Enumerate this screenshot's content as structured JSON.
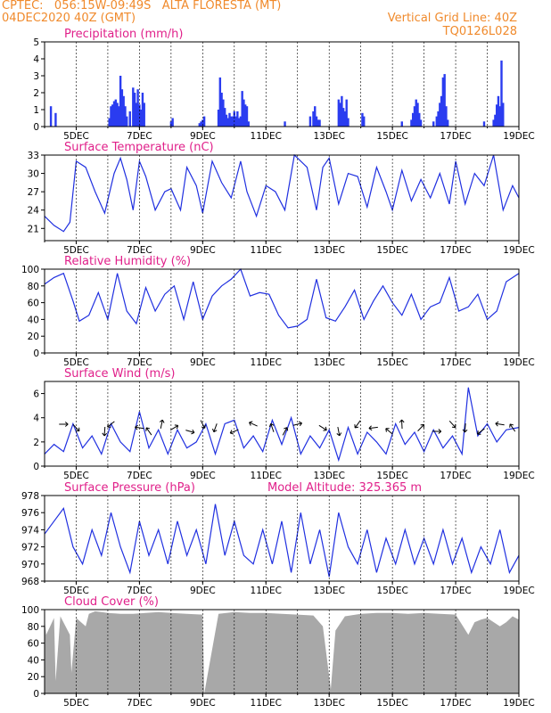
{
  "header": {
    "line1_left": "CPTEC:   056:15W-09:49S   ALTA FLORESTA (MT)",
    "line2_left": "04DEC2020 40Z (GMT)",
    "line1_right": "Vertical Grid Line: 40Z",
    "line2_right": "TQ0126L028"
  },
  "model_altitude": "Model Altitude: 325.365 m",
  "colors": {
    "line": "#2030e0",
    "bar": "#2a3cf0",
    "cloud": "#a8a8a8",
    "title": "#e0208a",
    "header": "#f08a2c",
    "arrow": "#000000"
  },
  "x_ticks": [
    "5DEC",
    "7DEC",
    "9DEC",
    "11DEC",
    "13DEC",
    "15DEC",
    "17DEC",
    "19DEC"
  ],
  "chart_data": [
    {
      "type": "bar",
      "title": "Precipitation (mm/h)",
      "ylim": [
        0,
        5
      ],
      "yticks": [
        "0",
        "1",
        "2",
        "3",
        "4",
        "5"
      ],
      "x": [
        4.2,
        4.35,
        6.05,
        6.1,
        6.15,
        6.2,
        6.25,
        6.3,
        6.35,
        6.4,
        6.45,
        6.5,
        6.55,
        6.6,
        6.7,
        6.8,
        6.85,
        6.9,
        6.95,
        7.0,
        7.05,
        7.1,
        7.15,
        8.0,
        8.05,
        8.9,
        8.95,
        9.0,
        9.05,
        9.5,
        9.55,
        9.6,
        9.65,
        9.7,
        9.75,
        9.8,
        9.85,
        9.9,
        9.95,
        10.0,
        10.05,
        10.1,
        10.15,
        10.2,
        10.25,
        10.3,
        10.35,
        10.4,
        10.45,
        11.6,
        12.4,
        12.5,
        12.55,
        12.6,
        12.65,
        12.7,
        13.3,
        13.35,
        13.4,
        13.45,
        13.5,
        13.55,
        13.6,
        14.05,
        14.1,
        15.3,
        15.6,
        15.65,
        15.7,
        15.75,
        15.8,
        15.85,
        15.9,
        16.3,
        16.4,
        16.45,
        16.5,
        16.55,
        16.6,
        16.65,
        16.7,
        16.75,
        17.9,
        18.2,
        18.25,
        18.3,
        18.35,
        18.4,
        18.45,
        18.5
      ],
      "values": [
        1.2,
        0.8,
        0.5,
        1.2,
        1.3,
        1.5,
        1.6,
        1.4,
        1.2,
        3.0,
        2.2,
        1.8,
        1.2,
        0.6,
        0.9,
        2.3,
        2.0,
        1.4,
        2.2,
        1.3,
        1.0,
        2.0,
        1.4,
        0.3,
        0.5,
        0.2,
        0.3,
        0.4,
        0.6,
        1.0,
        2.9,
        2.0,
        1.6,
        1.1,
        0.7,
        0.5,
        0.8,
        0.6,
        0.6,
        0.9,
        0.6,
        0.9,
        0.5,
        0.6,
        2.1,
        1.6,
        1.3,
        1.2,
        0.3,
        0.3,
        0.6,
        0.9,
        1.2,
        0.6,
        0.4,
        0.4,
        1.6,
        1.4,
        1.8,
        1.1,
        0.9,
        1.6,
        0.5,
        0.8,
        0.6,
        0.3,
        0.4,
        0.8,
        1.2,
        1.6,
        1.4,
        0.8,
        0.4,
        0.3,
        0.6,
        0.9,
        1.4,
        1.8,
        2.9,
        3.1,
        1.2,
        0.4,
        0.3,
        0.4,
        0.7,
        1.3,
        1.8,
        1.2,
        3.9,
        1.4
      ]
    },
    {
      "type": "line",
      "title": "Surface Temperature (nC)",
      "ylim": [
        19,
        33
      ],
      "yticks": [
        "21",
        "24",
        "27",
        "30",
        "33"
      ],
      "x": [
        4,
        4.3,
        4.6,
        4.8,
        5.0,
        5.3,
        5.6,
        5.9,
        6.2,
        6.4,
        6.6,
        6.8,
        7.0,
        7.2,
        7.5,
        7.8,
        8.0,
        8.3,
        8.5,
        8.8,
        9.0,
        9.3,
        9.6,
        9.9,
        10.2,
        10.4,
        10.7,
        11.0,
        11.3,
        11.6,
        11.9,
        12.3,
        12.6,
        12.8,
        13.0,
        13.3,
        13.6,
        13.9,
        14.2,
        14.5,
        14.8,
        15.0,
        15.3,
        15.6,
        15.9,
        16.2,
        16.5,
        16.8,
        17.0,
        17.3,
        17.6,
        17.9,
        18.2,
        18.5,
        18.8,
        19.0
      ],
      "values": [
        23,
        21.5,
        20.5,
        22,
        32,
        31,
        27,
        23.5,
        30,
        32.5,
        29,
        24,
        32,
        29.5,
        24,
        27,
        27.5,
        24,
        31,
        28,
        23.5,
        32,
        28.5,
        26,
        32,
        27,
        23,
        28,
        27,
        24,
        33,
        31,
        24,
        31,
        32.5,
        25,
        30,
        29.5,
        24.5,
        31,
        27,
        24,
        30.5,
        25.5,
        29,
        26,
        30,
        25,
        32,
        25,
        30,
        28,
        33,
        24,
        28,
        26
      ]
    },
    {
      "type": "line",
      "title": "Relative Humidity (%)",
      "ylim": [
        0,
        100
      ],
      "yticks": [
        "0",
        "20",
        "40",
        "60",
        "80",
        "100"
      ],
      "x": [
        4,
        4.3,
        4.6,
        4.9,
        5.1,
        5.4,
        5.7,
        6.0,
        6.3,
        6.6,
        6.9,
        7.2,
        7.5,
        7.8,
        8.1,
        8.4,
        8.7,
        9.0,
        9.3,
        9.6,
        9.9,
        10.2,
        10.5,
        10.8,
        11.1,
        11.4,
        11.7,
        12.0,
        12.3,
        12.6,
        12.9,
        13.2,
        13.5,
        13.8,
        14.1,
        14.4,
        14.7,
        15.0,
        15.3,
        15.6,
        15.9,
        16.2,
        16.5,
        16.8,
        17.1,
        17.4,
        17.7,
        18.0,
        18.3,
        18.6,
        19.0
      ],
      "values": [
        82,
        90,
        95,
        62,
        38,
        45,
        72,
        40,
        95,
        50,
        35,
        78,
        50,
        70,
        80,
        40,
        85,
        40,
        68,
        80,
        88,
        100,
        68,
        72,
        70,
        45,
        30,
        32,
        40,
        88,
        42,
        38,
        55,
        75,
        40,
        62,
        80,
        60,
        45,
        70,
        40,
        55,
        60,
        90,
        50,
        55,
        70,
        40,
        50,
        85,
        95
      ]
    },
    {
      "type": "line",
      "title": "Surface Wind (m/s)",
      "ylim": [
        0,
        7
      ],
      "yticks": [
        "0",
        "2",
        "4",
        "6"
      ],
      "x": [
        4,
        4.3,
        4.6,
        4.9,
        5.2,
        5.5,
        5.8,
        6.1,
        6.4,
        6.7,
        7.0,
        7.3,
        7.6,
        7.9,
        8.2,
        8.5,
        8.8,
        9.1,
        9.4,
        9.7,
        10.0,
        10.3,
        10.6,
        10.9,
        11.2,
        11.5,
        11.8,
        12.1,
        12.4,
        12.7,
        13.0,
        13.3,
        13.6,
        13.9,
        14.2,
        14.5,
        14.8,
        15.1,
        15.4,
        15.7,
        16.0,
        16.3,
        16.6,
        16.9,
        17.2,
        17.4,
        17.7,
        18.0,
        18.3,
        18.6,
        19.0
      ],
      "values": [
        1.0,
        1.8,
        1.2,
        3.5,
        1.5,
        2.5,
        1.0,
        3.5,
        2.0,
        1.2,
        4.5,
        1.5,
        3.0,
        1.0,
        3.0,
        1.5,
        2.0,
        3.5,
        1.0,
        3.5,
        3.8,
        1.5,
        2.5,
        1.2,
        3.8,
        1.8,
        4.0,
        1.0,
        2.5,
        1.5,
        3.0,
        0.5,
        3.2,
        1.0,
        2.8,
        2.0,
        1.0,
        3.5,
        1.8,
        2.8,
        1.2,
        3.0,
        1.5,
        2.5,
        1.0,
        6.5,
        2.5,
        3.5,
        2.0,
        3.0,
        3.2
      ]
    },
    {
      "type": "line",
      "title": "Surface Pressure (hPa)",
      "ylim": [
        968,
        978
      ],
      "yticks": [
        "968",
        "970",
        "972",
        "974",
        "976",
        "978"
      ],
      "x": [
        4,
        4.3,
        4.6,
        4.9,
        5.2,
        5.5,
        5.8,
        6.1,
        6.4,
        6.7,
        7.0,
        7.3,
        7.6,
        7.9,
        8.2,
        8.5,
        8.8,
        9.1,
        9.4,
        9.7,
        10.0,
        10.3,
        10.6,
        10.9,
        11.2,
        11.5,
        11.8,
        12.1,
        12.4,
        12.7,
        13.0,
        13.3,
        13.6,
        13.9,
        14.2,
        14.5,
        14.8,
        15.1,
        15.4,
        15.7,
        16.0,
        16.3,
        16.6,
        16.9,
        17.2,
        17.5,
        17.8,
        18.1,
        18.4,
        18.7,
        19.0
      ],
      "values": [
        973.5,
        975,
        976.5,
        972,
        970,
        974,
        971,
        976,
        972,
        969,
        975,
        971,
        974,
        970,
        975,
        971,
        974,
        970,
        977,
        971,
        975,
        971,
        970,
        974,
        970,
        975,
        969,
        976,
        970,
        974,
        968.5,
        976,
        972,
        970,
        974,
        969,
        973,
        970,
        974,
        970,
        973,
        970,
        974,
        970,
        973,
        969,
        972,
        970,
        974,
        969,
        971
      ]
    },
    {
      "type": "area",
      "title": "Cloud Cover (%)",
      "ylim": [
        0,
        100
      ],
      "yticks": [
        "0",
        "20",
        "40",
        "60",
        "80",
        "100"
      ],
      "x": [
        4,
        4.05,
        4.3,
        4.35,
        4.5,
        4.8,
        4.85,
        5.0,
        5.3,
        5.4,
        5.6,
        5.8,
        6.0,
        6.4,
        6.8,
        7.2,
        7.6,
        8.0,
        8.5,
        9.0,
        9.05,
        9.5,
        10.0,
        10.5,
        11.0,
        11.5,
        12.0,
        12.5,
        12.8,
        12.9,
        13.0,
        13.05,
        13.2,
        13.5,
        14.0,
        14.5,
        15.0,
        15.5,
        16.0,
        16.5,
        17.0,
        17.4,
        17.6,
        17.8,
        18.0,
        18.4,
        18.6,
        18.8,
        19.0
      ],
      "values": [
        88,
        70,
        90,
        15,
        92,
        70,
        25,
        90,
        80,
        95,
        98,
        97,
        96,
        95,
        95,
        96,
        97,
        96,
        95,
        94,
        0,
        95,
        97,
        96,
        96,
        95,
        94,
        93,
        80,
        50,
        20,
        5,
        75,
        92,
        95,
        96,
        96,
        95,
        96,
        95,
        94,
        70,
        85,
        88,
        90,
        80,
        85,
        92,
        88
      ]
    }
  ]
}
